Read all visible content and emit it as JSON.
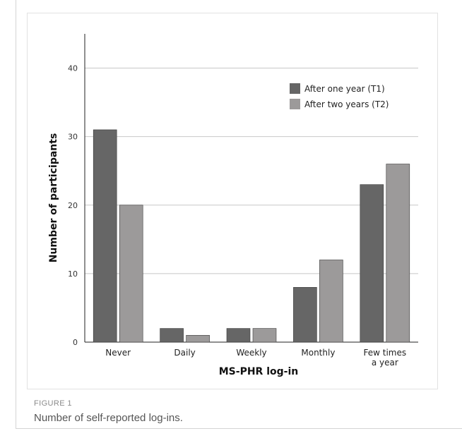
{
  "figure": {
    "label": "FIGURE 1",
    "caption": "Number of self-reported log-ins."
  },
  "chart_data": {
    "type": "bar",
    "title": "",
    "xlabel": "MS-PHR log-in",
    "ylabel": "Number of participants",
    "categories": [
      "Never",
      "Daily",
      "Weekly",
      "Monthly",
      "Few times a year"
    ],
    "category_label_lines": [
      [
        "Never"
      ],
      [
        "Daily"
      ],
      [
        "Weekly"
      ],
      [
        "Monthly"
      ],
      [
        "Few times",
        "a year"
      ]
    ],
    "series": [
      {
        "name": "After one year (T1)",
        "values": [
          31,
          2,
          2,
          8,
          23
        ],
        "color": "#666666"
      },
      {
        "name": "After two years (T2)",
        "values": [
          20,
          1,
          2,
          12,
          26
        ],
        "color": "#9c9a9a"
      }
    ],
    "ylim": [
      0,
      45
    ],
    "yticks": [
      0,
      10,
      20,
      30,
      40
    ],
    "grid": true,
    "legend": "top-right"
  }
}
